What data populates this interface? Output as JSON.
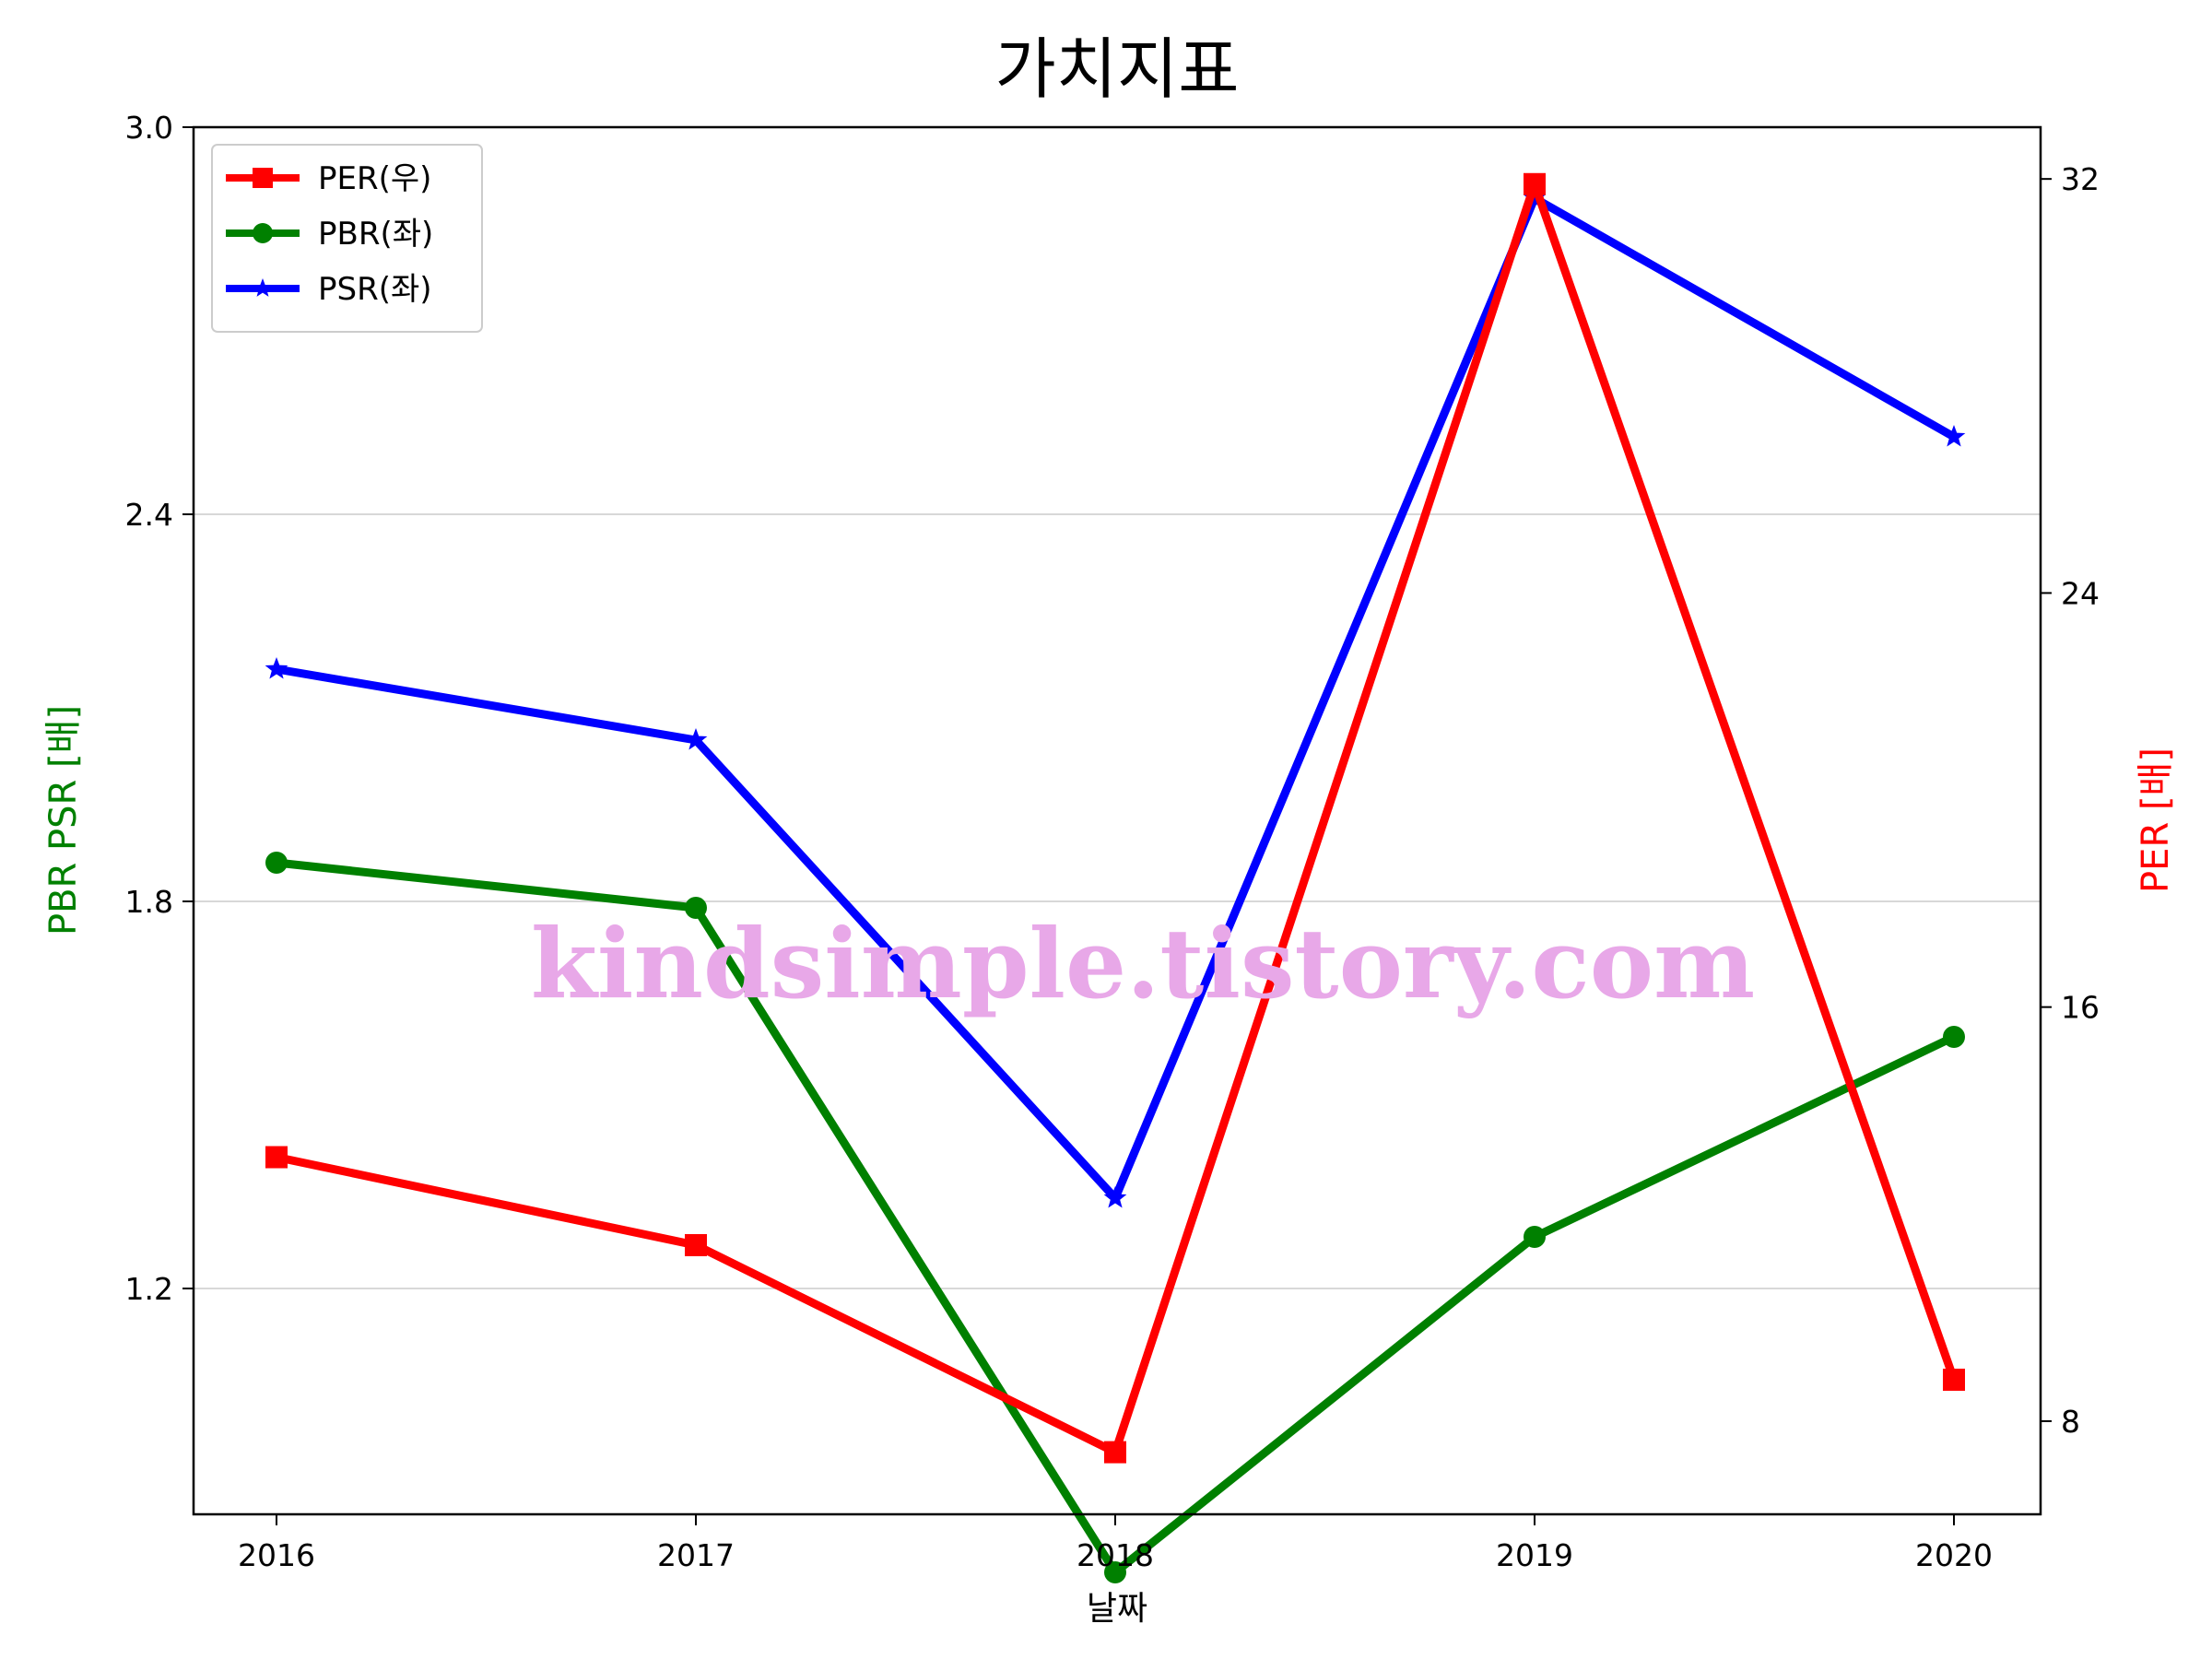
{
  "chart_data": {
    "type": "line",
    "title": "가치지표",
    "xlabel": "날짜",
    "ylabel_left": "PBR PSR [배]",
    "ylabel_right": "PER [배]",
    "x": [
      "2016",
      "2017",
      "2018",
      "2019",
      "2020"
    ],
    "ylim_left": [
      0.85,
      3.0
    ],
    "ylim_right": [
      6.2,
      33.0
    ],
    "yticks_left": [
      "1.2",
      "1.8",
      "2.4",
      "3.0"
    ],
    "yticks_right": [
      "8",
      "16",
      "24",
      "32"
    ],
    "grid": "horizontal (left axis)",
    "legend_position": "top-left",
    "series": [
      {
        "name": "PER(우)",
        "axis": "right",
        "marker": "square",
        "color": "#ff0000",
        "values": [
          13.1,
          11.4,
          7.4,
          31.9,
          8.8
        ]
      },
      {
        "name": "PBR(좌)",
        "axis": "left",
        "marker": "circle",
        "color": "#008000",
        "values": [
          1.86,
          1.79,
          0.76,
          1.28,
          1.59
        ]
      },
      {
        "name": "PSR(좌)",
        "axis": "left",
        "marker": "star",
        "color": "#0000ff",
        "values": [
          2.16,
          2.05,
          1.34,
          2.89,
          2.52
        ]
      }
    ]
  },
  "watermark": "kindsimple.tistory.com"
}
